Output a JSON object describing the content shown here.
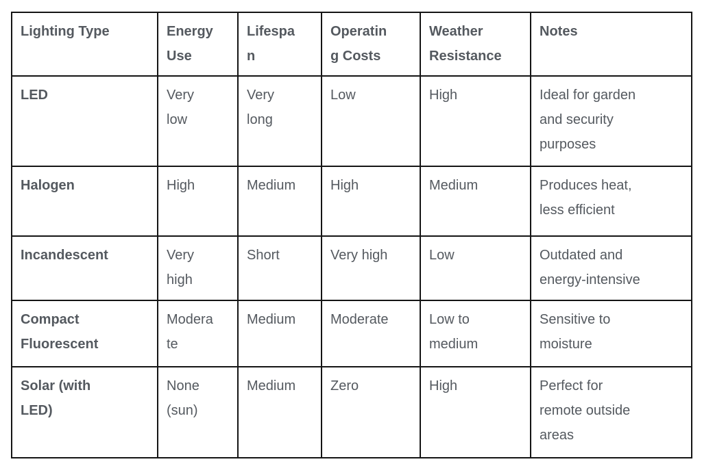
{
  "colors": {
    "text": "#54595f",
    "border": "#141414",
    "background": "#ffffff"
  },
  "table": {
    "columns": [
      "Lighting Type",
      "Energy Use",
      "Lifespan",
      "Operating Costs",
      "Weather Resistance",
      "Notes"
    ],
    "rows": [
      {
        "lighting_type": "LED",
        "energy_use": "Very low",
        "lifespan": "Very long",
        "operating_costs": "Low",
        "weather_resistance": "High",
        "notes": "Ideal for garden and security purposes"
      },
      {
        "lighting_type": "Halogen",
        "energy_use": "High",
        "lifespan": "Medium",
        "operating_costs": "High",
        "weather_resistance": "Medium",
        "notes": "Produces heat, less efficient"
      },
      {
        "lighting_type": "Incandescent",
        "energy_use": "Very high",
        "lifespan": "Short",
        "operating_costs": "Very high",
        "weather_resistance": "Low",
        "notes": "Outdated and energy-intensive"
      },
      {
        "lighting_type": "Compact Fluorescent",
        "energy_use": "Moderate",
        "lifespan": "Medium",
        "operating_costs": "Moderate",
        "weather_resistance": "Low to medium",
        "notes": "Sensitive to moisture"
      },
      {
        "lighting_type": "Solar (with LED)",
        "energy_use": "None (sun)",
        "lifespan": "Medium",
        "operating_costs": "Zero",
        "weather_resistance": "High",
        "notes": "Perfect for remote outside areas"
      }
    ]
  }
}
